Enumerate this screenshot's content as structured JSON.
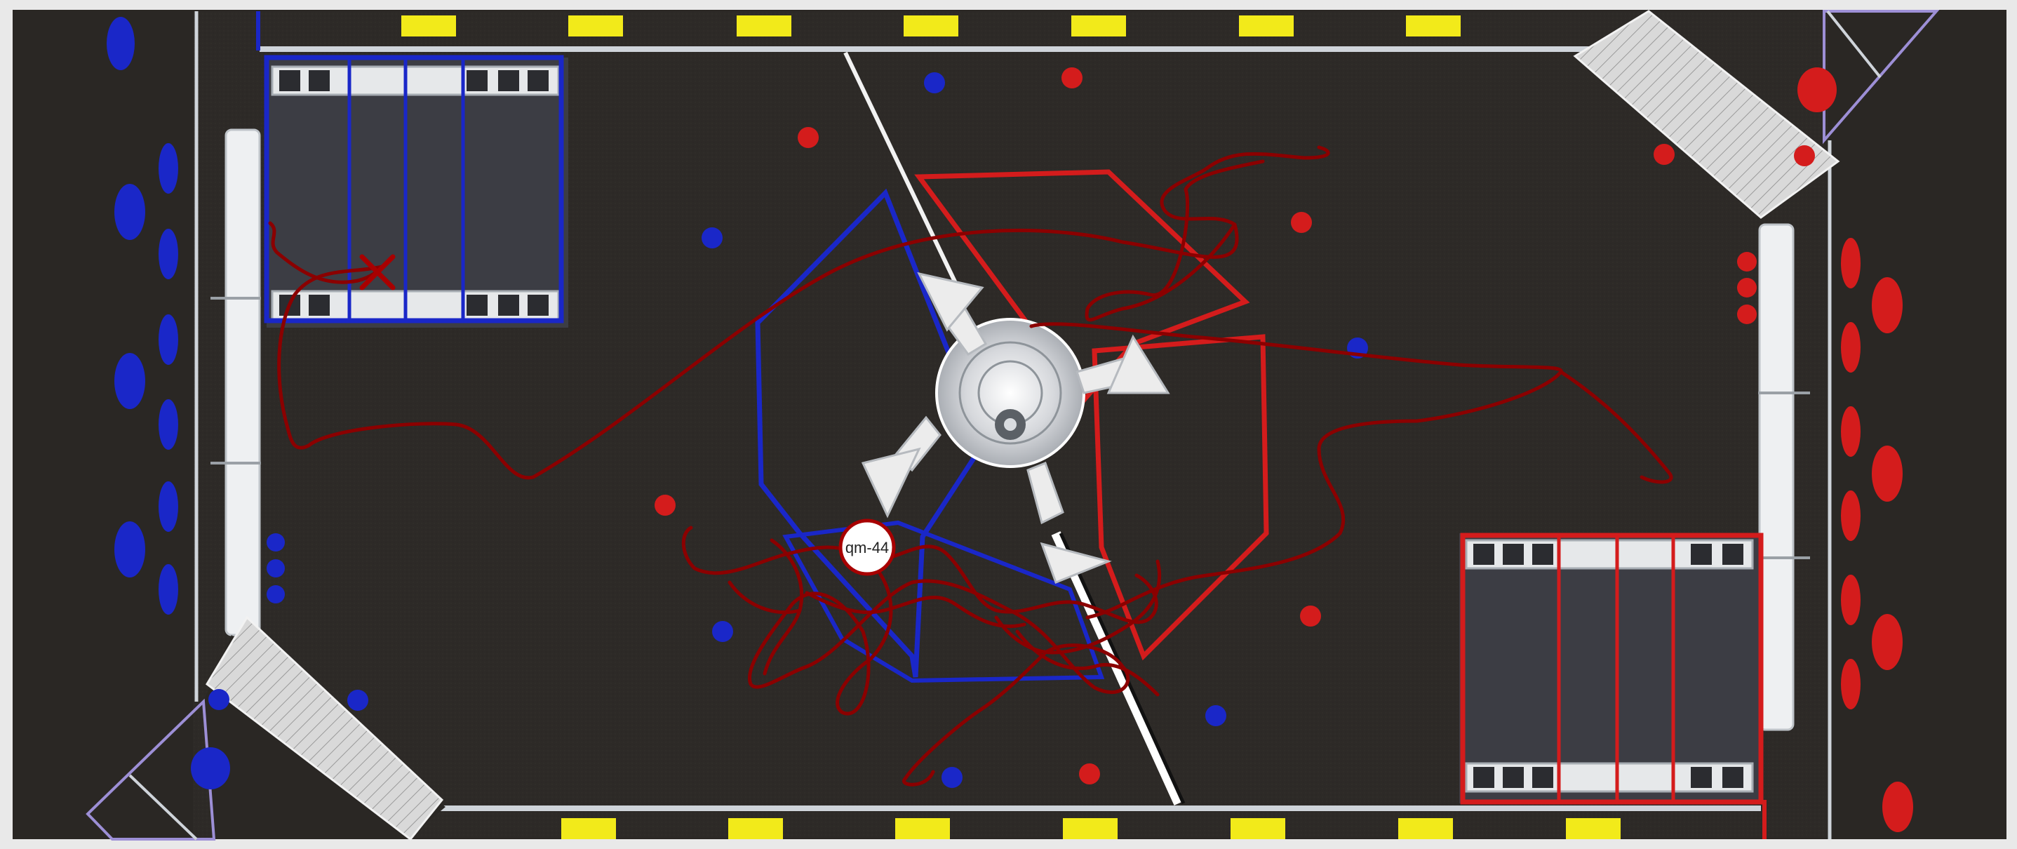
{
  "match_marker": {
    "label": "qm-44"
  },
  "colors": {
    "carpet": "#2d2a27",
    "blue_alliance": "#1a27c8",
    "red_alliance": "#d41c1c",
    "path": "#8b0000",
    "tape_yellow": "#f2ea1a",
    "wall": "#cfd4da"
  },
  "icons": {
    "robot_path": "robot-path-line",
    "end_marker": "x-mark-icon",
    "hub": "hub-icon",
    "hangar": "hangar-icon",
    "ball": "cargo-ball-icon",
    "human_player": "human-player-icon"
  }
}
